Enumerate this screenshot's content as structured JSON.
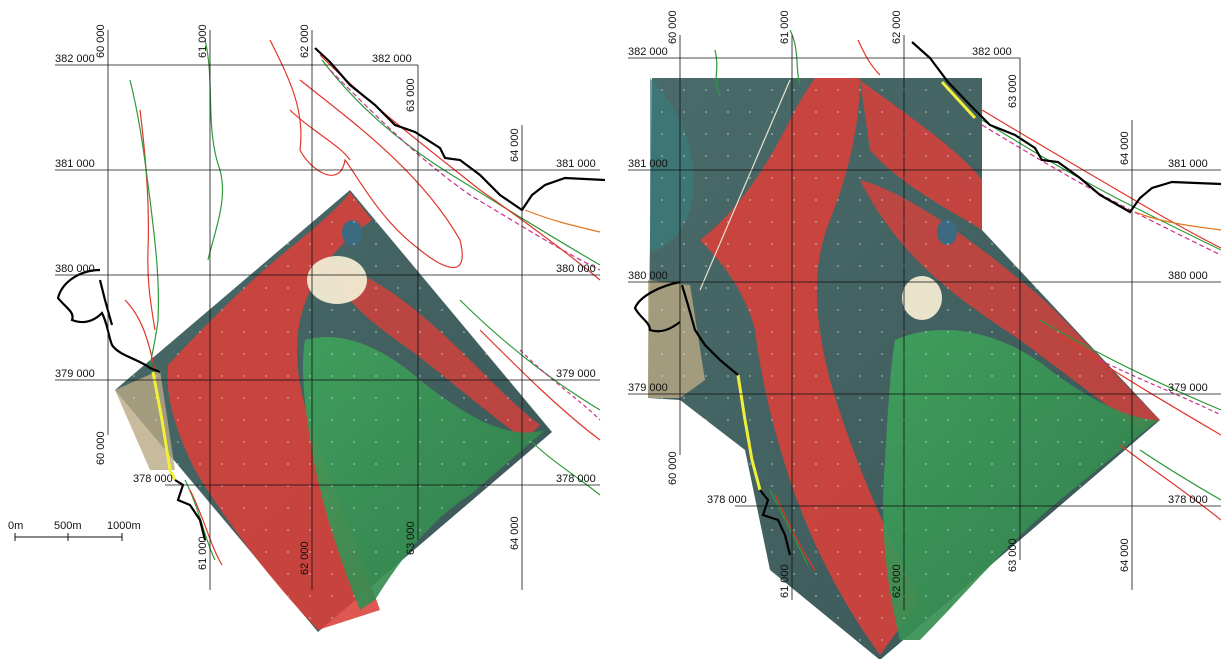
{
  "left_map": {
    "northing_labels_left": [
      "382 000",
      "381 000",
      "380 000",
      "379 000",
      "378 000"
    ],
    "northing_labels_right": [
      "382 000",
      "381 000",
      "380 000",
      "379 000",
      "378 000"
    ],
    "easting_labels_top": [
      "60 000",
      "61 000",
      "62 000",
      "63 000",
      "64 000"
    ],
    "easting_labels_bottom": [
      "60 000",
      "61 000",
      "62 000",
      "63 000",
      "64 000"
    ],
    "scale_bar": {
      "labels": [
        "0m",
        "500m",
        "1000m"
      ]
    }
  },
  "right_map": {
    "northing_labels_left": [
      "382 000",
      "381 000",
      "380 000",
      "379 000",
      "378 000"
    ],
    "northing_labels_right": [
      "382 000",
      "381 000",
      "380 000",
      "379 000",
      "378 000"
    ],
    "easting_labels_top": [
      "60 000",
      "61 000",
      "62 000",
      "63 000",
      "64 000"
    ],
    "easting_labels_bottom": [
      "60 000",
      "61 000",
      "62 000",
      "63 000",
      "64 000"
    ]
  },
  "colors": {
    "grid": "#111111",
    "coastline": "#000000",
    "contour_red": "#e0352b",
    "contour_green": "#2e9a3a",
    "contour_magenta": "#cc2e8a",
    "contour_orange": "#e6781e",
    "overlay_red": "#d9403a",
    "overlay_green": "#3aa058",
    "overlay_slate": "#4f6f6e",
    "overlay_sand": "#f2ead2",
    "highlight_yellow": "#f2ef3a"
  }
}
